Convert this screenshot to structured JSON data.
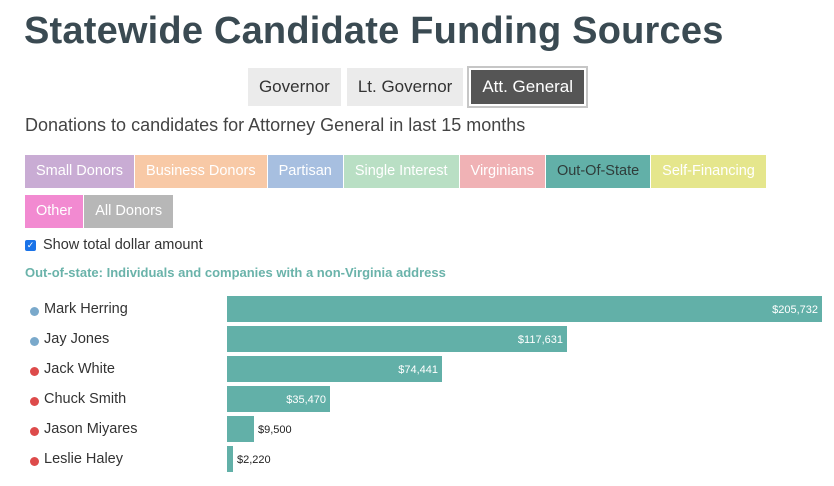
{
  "title": "Statewide Candidate Funding Sources",
  "race_tabs": [
    {
      "label": "Governor",
      "active": false
    },
    {
      "label": "Lt. Governor",
      "active": false
    },
    {
      "label": "Att. General",
      "active": true
    }
  ],
  "subtitle": "Donations to candidates for Attorney General in last 15 months",
  "filters": [
    {
      "label": "Small Donors",
      "color": "#c9acd4",
      "active": false
    },
    {
      "label": "Business Donors",
      "color": "#f8c9a6",
      "active": false
    },
    {
      "label": "Partisan",
      "color": "#a7bfe0",
      "active": false
    },
    {
      "label": "Single Interest",
      "color": "#b9dfc4",
      "active": false
    },
    {
      "label": "Virginians",
      "color": "#f0b2b5",
      "active": false
    },
    {
      "label": "Out-Of-State",
      "color": "#62b0a8",
      "active": true
    },
    {
      "label": "Self-Financing",
      "color": "#e5e68c",
      "active": false
    },
    {
      "label": "Other",
      "color": "#f28ad1",
      "active": false
    },
    {
      "label": "All Donors",
      "color": "#b7b7b7",
      "active": false
    }
  ],
  "show_total": {
    "label": "Show total dollar amount",
    "checked": true
  },
  "filter_description": "Out-of-state: Individuals and companies with a non-Virginia address",
  "party_colors": {
    "dem": "#7aa9cb",
    "rep": "#dd4b4b"
  },
  "chart_data": {
    "type": "bar",
    "orientation": "horizontal",
    "series_color": "#62b0a8",
    "max": 205732,
    "candidates": [
      {
        "name": "Mark Herring",
        "party": "dem",
        "value": 205732,
        "label": "$205,732"
      },
      {
        "name": "Jay Jones",
        "party": "dem",
        "value": 117631,
        "label": "$117,631"
      },
      {
        "name": "Jack White",
        "party": "rep",
        "value": 74441,
        "label": "$74,441"
      },
      {
        "name": "Chuck Smith",
        "party": "rep",
        "value": 35470,
        "label": "$35,470"
      },
      {
        "name": "Jason Miyares",
        "party": "rep",
        "value": 9500,
        "label": "$9,500"
      },
      {
        "name": "Leslie Haley",
        "party": "rep",
        "value": 2220,
        "label": "$2,220"
      }
    ]
  }
}
